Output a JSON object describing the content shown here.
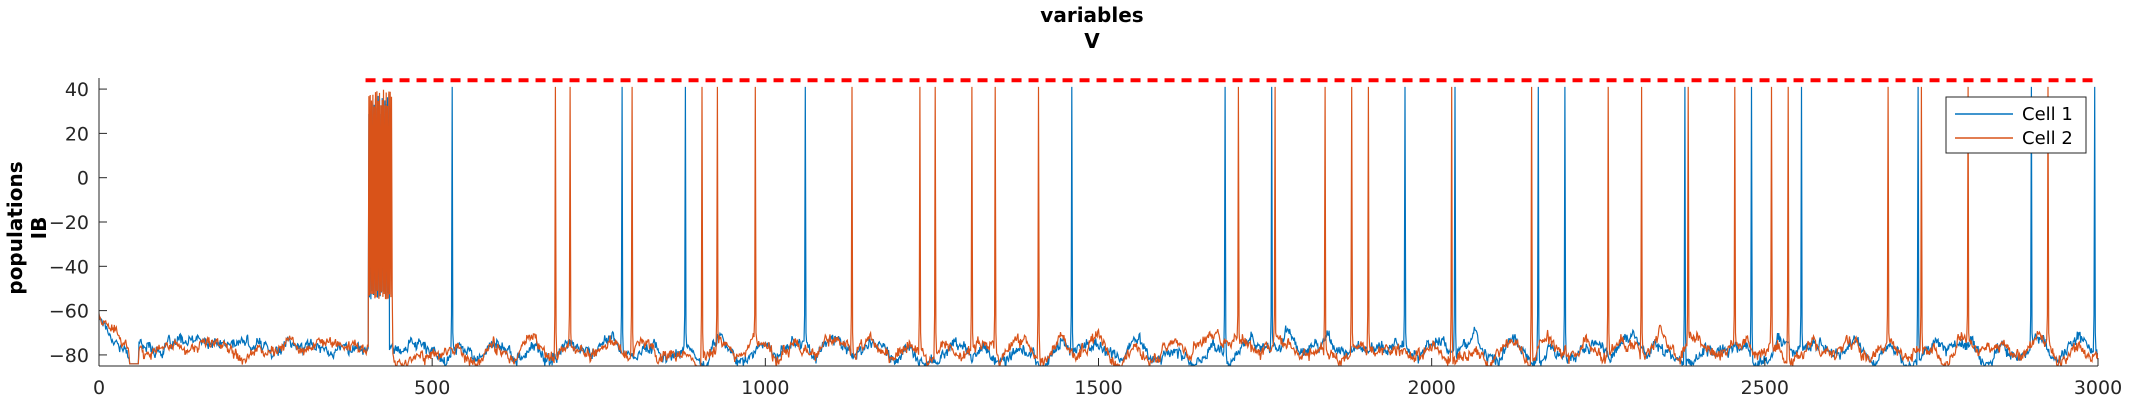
{
  "chart_data": {
    "type": "line",
    "title": [
      "variables",
      "V"
    ],
    "ylabel": [
      "populations",
      "IB"
    ],
    "xlabel": "",
    "xlim": [
      0,
      3000
    ],
    "ylim": [
      -85,
      45
    ],
    "x_ticks": [
      0,
      500,
      1000,
      1500,
      2000,
      2500,
      3000
    ],
    "x_tick_labels": [
      "0",
      "500",
      "1000",
      "1500",
      "2000",
      "2500",
      "3000"
    ],
    "y_ticks": [
      40,
      20,
      0,
      -20,
      -40,
      -60,
      -80
    ],
    "y_tick_labels": [
      "40",
      "20",
      "0",
      "−20",
      "−40",
      "−60",
      "−80"
    ],
    "grid": false,
    "legend_position": "top-right",
    "threshold_line": {
      "y": 44,
      "x_range": [
        400,
        3000
      ],
      "color": "#ff0000",
      "style": "dashed"
    },
    "series": [
      {
        "name": "Cell 1",
        "color": "#0072bd",
        "spike_times": [
          530,
          785,
          880,
          1060,
          1460,
          1690,
          1760,
          1960,
          2035,
          2160,
          2200,
          2380,
          2480,
          2555,
          2730,
          2900,
          2995
        ],
        "burst": {
          "start": 405,
          "end": 435,
          "peak": 38,
          "floor": -55
        }
      },
      {
        "name": "Cell 2",
        "color": "#d95319",
        "spike_times": [
          685,
          707,
          800,
          905,
          928,
          985,
          1130,
          1232,
          1255,
          1310,
          1345,
          1410,
          1710,
          1765,
          1840,
          1880,
          1905,
          2030,
          2150,
          2265,
          2315,
          2385,
          2455,
          2510,
          2535,
          2685,
          2735,
          2805,
          2925
        ],
        "burst": {
          "start": 405,
          "end": 440,
          "peak": 42,
          "floor": -55
        }
      }
    ],
    "baseline_segments": [
      {
        "x_range": [
          0,
          50
        ],
        "level": -62,
        "note_free": true
      },
      {
        "x_range": [
          60,
          400
        ],
        "level": -76
      },
      {
        "x_range": [
          440,
          3000
        ],
        "level": -78
      }
    ]
  }
}
